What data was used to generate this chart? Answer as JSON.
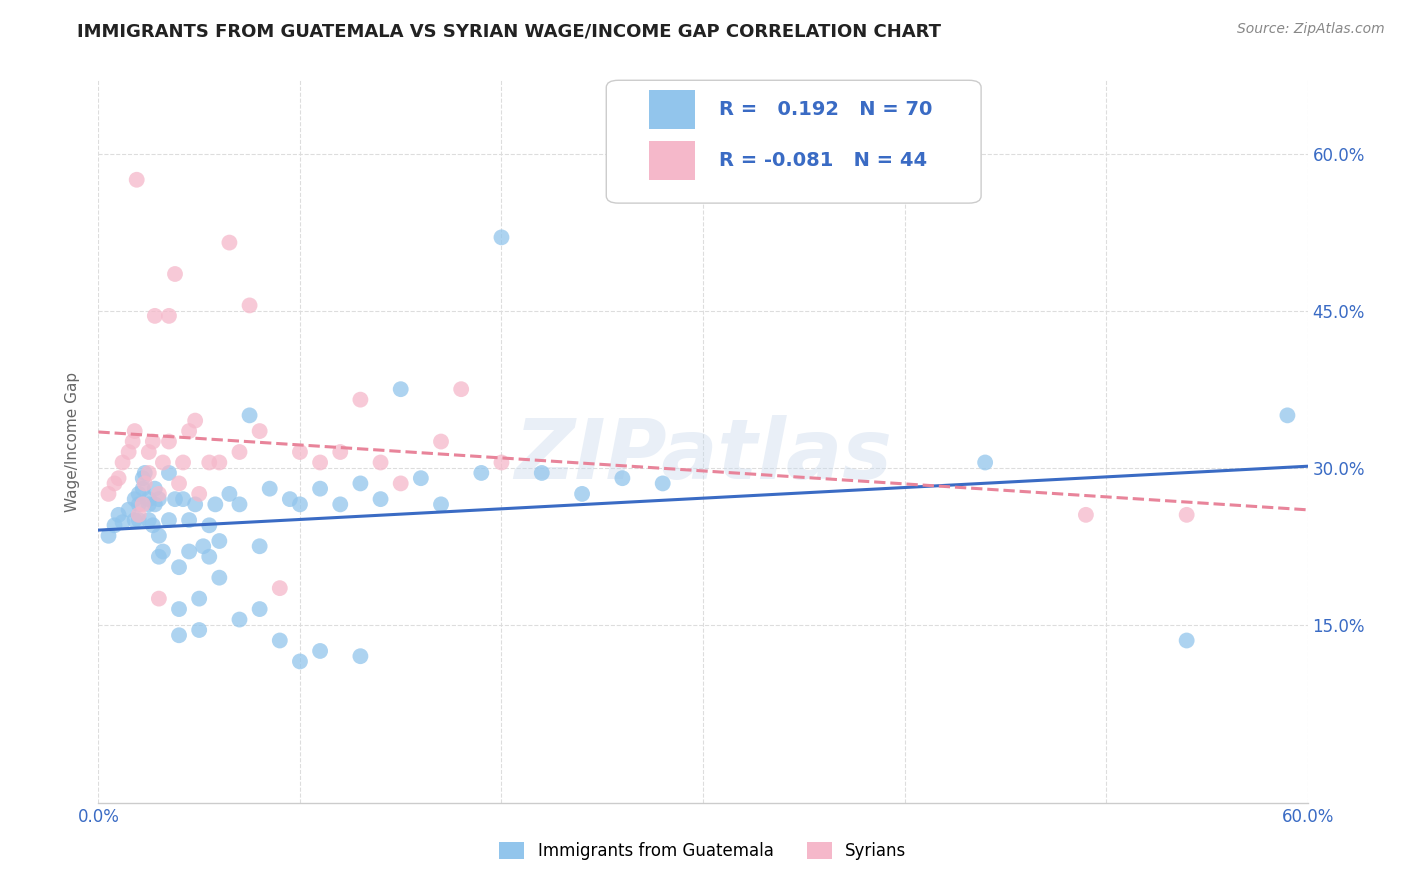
{
  "title": "IMMIGRANTS FROM GUATEMALA VS SYRIAN WAGE/INCOME GAP CORRELATION CHART",
  "source": "Source: ZipAtlas.com",
  "ylabel": "Wage/Income Gap",
  "yticks_labels": [
    "15.0%",
    "30.0%",
    "45.0%",
    "60.0%"
  ],
  "ytick_vals": [
    0.15,
    0.3,
    0.45,
    0.6
  ],
  "xlim": [
    0.0,
    0.6
  ],
  "ylim": [
    -0.02,
    0.67
  ],
  "blue_color": "#92C5EC",
  "pink_color": "#F5B8CA",
  "blue_line_color": "#3A6BC4",
  "pink_line_color": "#E8849A",
  "axis_label_color": "#3A6BC4",
  "background_color": "#FFFFFF",
  "watermark": "ZIPatlas",
  "legend_r1_label": "R =  0.192   N = 70",
  "legend_r2_label": "R = -0.081   N = 44",
  "guatemala_x": [
    0.005,
    0.008,
    0.01,
    0.012,
    0.015,
    0.018,
    0.018,
    0.02,
    0.02,
    0.02,
    0.022,
    0.022,
    0.023,
    0.025,
    0.025,
    0.025,
    0.027,
    0.028,
    0.028,
    0.03,
    0.03,
    0.03,
    0.032,
    0.035,
    0.035,
    0.038,
    0.04,
    0.04,
    0.04,
    0.042,
    0.045,
    0.045,
    0.048,
    0.05,
    0.05,
    0.052,
    0.055,
    0.055,
    0.058,
    0.06,
    0.06,
    0.065,
    0.07,
    0.07,
    0.075,
    0.08,
    0.08,
    0.085,
    0.09,
    0.095,
    0.1,
    0.1,
    0.11,
    0.11,
    0.12,
    0.13,
    0.13,
    0.14,
    0.15,
    0.16,
    0.17,
    0.19,
    0.2,
    0.22,
    0.24,
    0.26,
    0.28,
    0.44,
    0.54,
    0.59
  ],
  "guatemala_y": [
    0.235,
    0.245,
    0.255,
    0.248,
    0.26,
    0.25,
    0.27,
    0.25,
    0.265,
    0.275,
    0.28,
    0.29,
    0.295,
    0.25,
    0.265,
    0.27,
    0.245,
    0.265,
    0.28,
    0.215,
    0.235,
    0.27,
    0.22,
    0.25,
    0.295,
    0.27,
    0.14,
    0.165,
    0.205,
    0.27,
    0.22,
    0.25,
    0.265,
    0.145,
    0.175,
    0.225,
    0.215,
    0.245,
    0.265,
    0.195,
    0.23,
    0.275,
    0.155,
    0.265,
    0.35,
    0.165,
    0.225,
    0.28,
    0.135,
    0.27,
    0.115,
    0.265,
    0.125,
    0.28,
    0.265,
    0.12,
    0.285,
    0.27,
    0.375,
    0.29,
    0.265,
    0.295,
    0.52,
    0.295,
    0.275,
    0.29,
    0.285,
    0.305,
    0.135,
    0.35
  ],
  "syrian_x": [
    0.005,
    0.008,
    0.01,
    0.012,
    0.015,
    0.017,
    0.018,
    0.019,
    0.02,
    0.022,
    0.023,
    0.025,
    0.025,
    0.027,
    0.028,
    0.03,
    0.03,
    0.032,
    0.035,
    0.035,
    0.038,
    0.04,
    0.042,
    0.045,
    0.048,
    0.05,
    0.055,
    0.06,
    0.065,
    0.07,
    0.075,
    0.08,
    0.09,
    0.1,
    0.11,
    0.12,
    0.13,
    0.14,
    0.15,
    0.17,
    0.18,
    0.2,
    0.49,
    0.54
  ],
  "syrian_y": [
    0.275,
    0.285,
    0.29,
    0.305,
    0.315,
    0.325,
    0.335,
    0.575,
    0.255,
    0.265,
    0.285,
    0.295,
    0.315,
    0.325,
    0.445,
    0.175,
    0.275,
    0.305,
    0.325,
    0.445,
    0.485,
    0.285,
    0.305,
    0.335,
    0.345,
    0.275,
    0.305,
    0.305,
    0.515,
    0.315,
    0.455,
    0.335,
    0.185,
    0.315,
    0.305,
    0.315,
    0.365,
    0.305,
    0.285,
    0.325,
    0.375,
    0.305,
    0.255,
    0.255
  ]
}
